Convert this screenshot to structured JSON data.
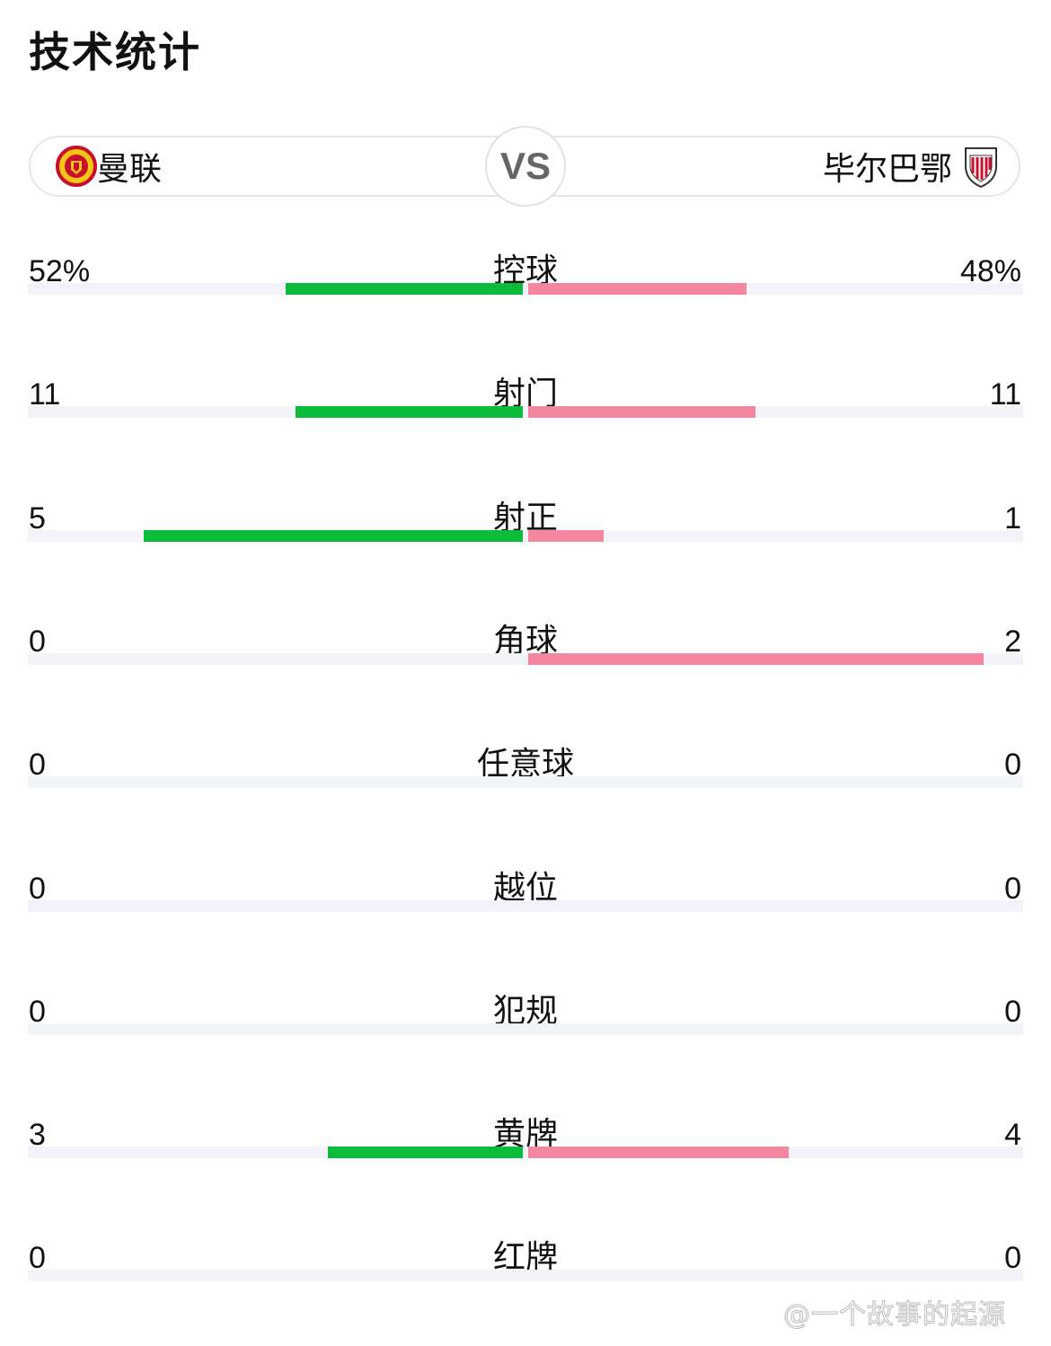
{
  "title": "技术统计",
  "home": {
    "name": "曼联",
    "color": "#0dbb3a",
    "logo": "manchester-united-crest"
  },
  "away": {
    "name": "毕尔巴鄂",
    "color": "#f5869f",
    "logo": "athletic-club-crest"
  },
  "vs": "VS",
  "stats": [
    {
      "label": "控球",
      "home": "52%",
      "away": "48%",
      "home_value": 52,
      "away_value": 48
    },
    {
      "label": "射门",
      "home": "11",
      "away": "11",
      "home_value": 11,
      "away_value": 11
    },
    {
      "label": "射正",
      "home": "5",
      "away": "1",
      "home_value": 5,
      "away_value": 1
    },
    {
      "label": "角球",
      "home": "0",
      "away": "2",
      "home_value": 0,
      "away_value": 2
    },
    {
      "label": "任意球",
      "home": "0",
      "away": "0",
      "home_value": 0,
      "away_value": 0
    },
    {
      "label": "越位",
      "home": "0",
      "away": "0",
      "home_value": 0,
      "away_value": 0
    },
    {
      "label": "犯规",
      "home": "0",
      "away": "0",
      "home_value": 0,
      "away_value": 0
    },
    {
      "label": "黄牌",
      "home": "3",
      "away": "4",
      "home_value": 3,
      "away_value": 4
    },
    {
      "label": "红牌",
      "home": "0",
      "away": "0",
      "home_value": 0,
      "away_value": 0
    }
  ],
  "watermark": "@一个故事的起源"
}
